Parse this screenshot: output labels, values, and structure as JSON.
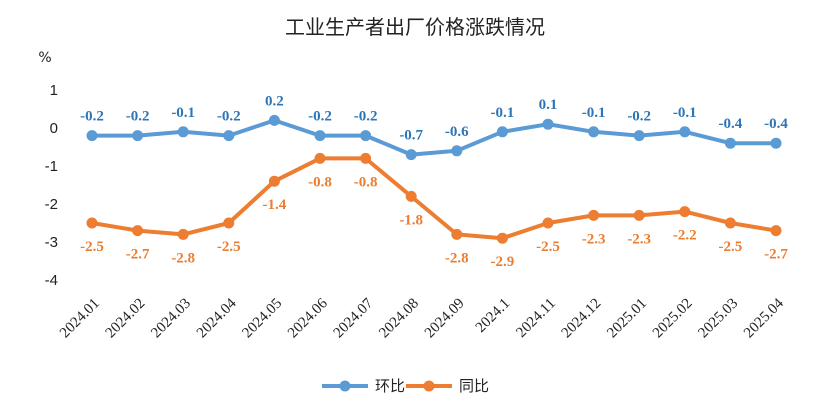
{
  "chart_data": {
    "type": "line",
    "title": "工业生产者出厂价格涨跌情况",
    "unit": "%",
    "categories": [
      "2024.01",
      "2024.02",
      "2024.03",
      "2024.04",
      "2024.05",
      "2024.06",
      "2024.07",
      "2024.08",
      "2024.09",
      "2024.1",
      "2024.11",
      "2024.12",
      "2025.01",
      "2025.02",
      "2025.03",
      "2025.04"
    ],
    "ylim": [
      -4,
      1
    ],
    "yticks": [
      1,
      0,
      -1,
      -2,
      -3,
      -4
    ],
    "grid": false,
    "legend_position": "bottom",
    "series": [
      {
        "name": "环比",
        "color": "#5B9BD5",
        "label_color": "#2E75B6",
        "values": [
          -0.2,
          -0.2,
          -0.1,
          -0.2,
          0.2,
          -0.2,
          -0.2,
          -0.7,
          -0.6,
          -0.1,
          0.1,
          -0.1,
          -0.2,
          -0.1,
          -0.4,
          -0.4
        ],
        "labels": [
          "-0.2",
          "-0.2",
          "-0.1",
          "-0.2",
          "0.2",
          "-0.2",
          "-0.2",
          "-0.7",
          "-0.6",
          "-0.1",
          "0.1",
          "-0.1",
          "-0.2",
          "-0.1",
          "-0.4",
          "-0.4"
        ]
      },
      {
        "name": "同比",
        "color": "#ED7D31",
        "label_color": "#ED7D31",
        "values": [
          -2.5,
          -2.7,
          -2.8,
          -2.5,
          -1.4,
          -0.8,
          -0.8,
          -1.8,
          -2.8,
          -2.9,
          -2.5,
          -2.3,
          -2.3,
          -2.2,
          -2.5,
          -2.7
        ],
        "labels": [
          "-2.5",
          "-2.7",
          "-2.8",
          "-2.5",
          "-1.4",
          "-0.8",
          "-0.8",
          "-1.8",
          "-2.8",
          "-2.9",
          "-2.5",
          "-2.3",
          "-2.3",
          "-2.2",
          "-2.5",
          "-2.7"
        ]
      }
    ]
  }
}
